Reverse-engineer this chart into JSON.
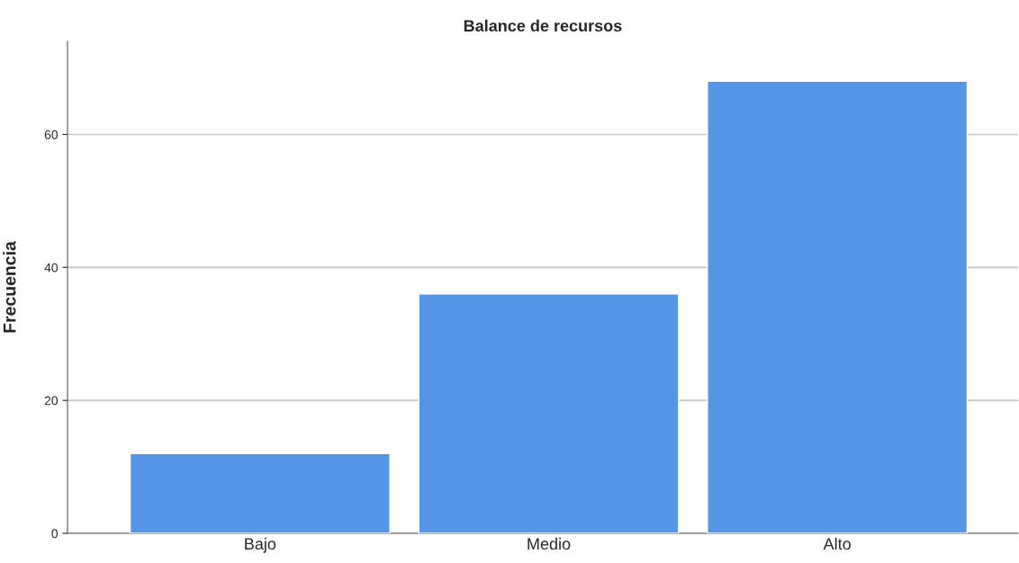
{
  "chart_data": {
    "type": "bar",
    "title": "Balance de recursos",
    "ylabel": "Frecuencia",
    "categories": [
      "Bajo",
      "Medio",
      "Alto"
    ],
    "values": [
      12,
      36,
      68
    ],
    "color": "#5596e6",
    "ylim": [
      0,
      74
    ],
    "yticks": [
      0,
      20,
      40,
      60
    ],
    "grid": "y",
    "legend": false
  }
}
